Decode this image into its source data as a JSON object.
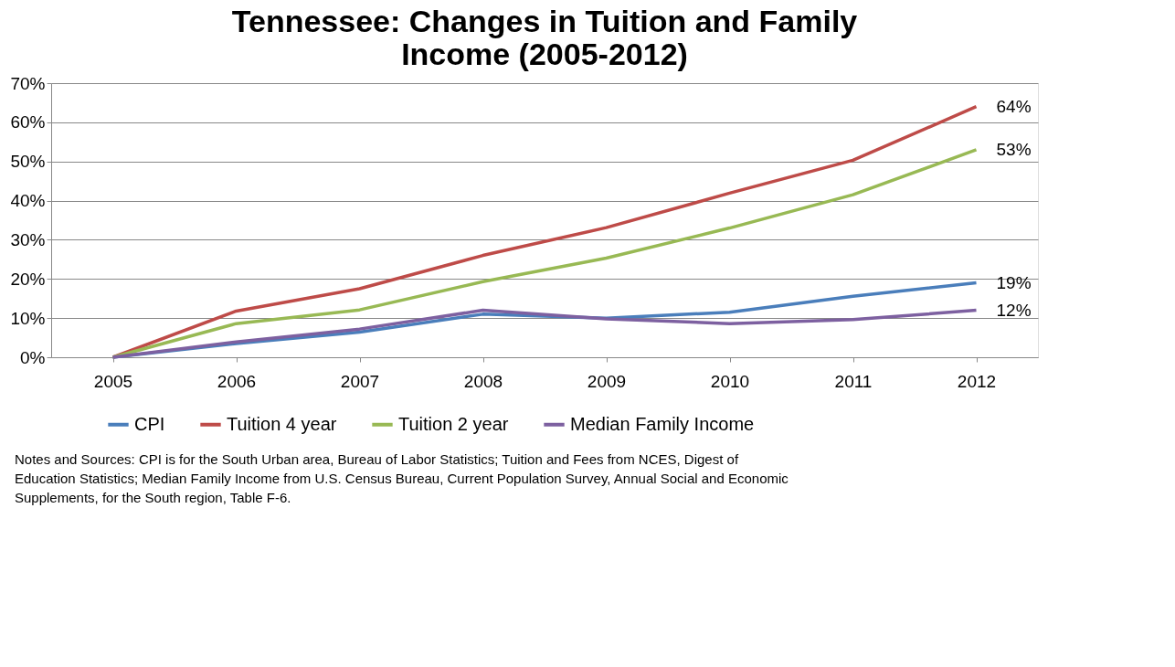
{
  "chart_data": {
    "type": "line",
    "title": "Tennessee: Changes in Tuition and Family Income (2005-2012)",
    "categories": [
      "2005",
      "2006",
      "2007",
      "2008",
      "2009",
      "2010",
      "2011",
      "2012"
    ],
    "series": [
      {
        "name": "CPI",
        "color": "#4a7ebb",
        "values": [
          0,
          3.5,
          6.4,
          11,
          10,
          11.5,
          15.6,
          19
        ],
        "value_labels": [
          null,
          null,
          null,
          null,
          null,
          null,
          null,
          "19%"
        ]
      },
      {
        "name": "Tuition 4 year",
        "color": "#be4b48",
        "values": [
          0,
          11.8,
          17.5,
          26,
          33.1,
          41.9,
          50.3,
          64
        ],
        "value_labels": [
          null,
          null,
          null,
          null,
          null,
          null,
          null,
          "64%"
        ]
      },
      {
        "name": "Tuition 2 year",
        "color": "#98b954",
        "values": [
          0,
          8.6,
          12.1,
          19.3,
          25.3,
          33,
          41.5,
          53
        ],
        "value_labels": [
          null,
          null,
          null,
          null,
          null,
          null,
          null,
          "53%"
        ]
      },
      {
        "name": "Median Family Income",
        "color": "#7d60a0",
        "values": [
          0,
          3.9,
          7.2,
          12,
          9.8,
          8.6,
          9.6,
          12
        ],
        "value_labels": [
          null,
          null,
          null,
          null,
          null,
          null,
          null,
          "12%"
        ]
      }
    ],
    "ylim": [
      0,
      70
    ],
    "yticks": [
      {
        "value": 0,
        "label": "0%"
      },
      {
        "value": 10,
        "label": "10%"
      },
      {
        "value": 20,
        "label": "20%"
      },
      {
        "value": 30,
        "label": "30%"
      },
      {
        "value": 40,
        "label": "40%"
      },
      {
        "value": 50,
        "label": "50%"
      },
      {
        "value": 60,
        "label": "60%"
      },
      {
        "value": 70,
        "label": "70%"
      }
    ],
    "grid": "y",
    "legend": "bottom",
    "marker": "none",
    "line_style": "solid",
    "annotations": [
      "Notes and Sources: CPI is for the South Urban area, Bureau of Labor Statistics; Tuition and Fees  from NCES, Digest of Education Statistics; Median Family Income from U.S. Census Bureau, Current Population Survey, Annual Social and Economic Supplements, for the South region, Table F-6."
    ]
  }
}
